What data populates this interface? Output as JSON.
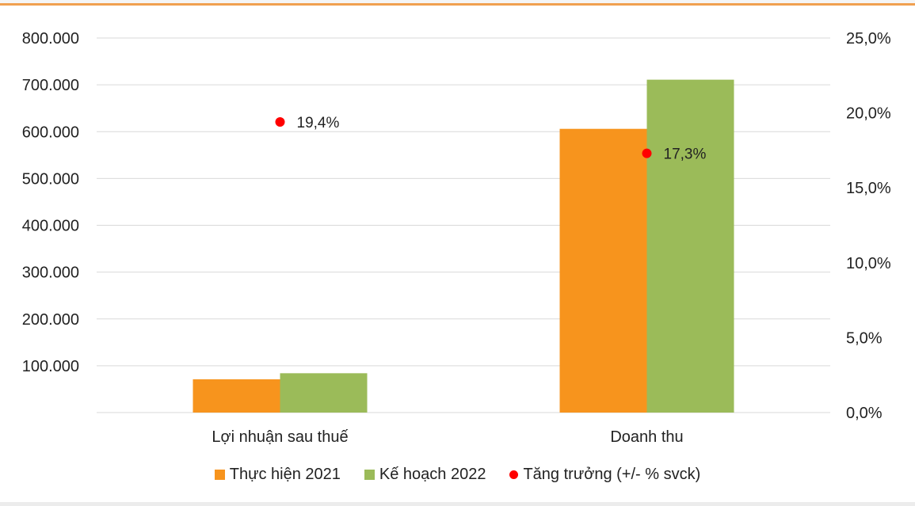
{
  "chart_data": {
    "type": "bar",
    "categories": [
      "Lợi nhuận sau thuế",
      "Doanh thu"
    ],
    "series": [
      {
        "name": "Thực hiện 2021",
        "kind": "bar",
        "axis": "left",
        "values": [
          71000,
          606000
        ],
        "color": "#f7941d"
      },
      {
        "name": "Kế hoạch 2022",
        "kind": "bar",
        "axis": "left",
        "values": [
          84000,
          711000
        ],
        "color": "#9bbb59"
      },
      {
        "name": "Tăng trưởng (+/- % svck)",
        "kind": "scatter",
        "axis": "right",
        "values": [
          19.4,
          17.3
        ],
        "labels": [
          "19,4%",
          "17,3%"
        ],
        "color": "#ff0000"
      }
    ],
    "y_left": {
      "range": [
        0,
        800000
      ],
      "ticks": [
        "",
        "100.000",
        "200.000",
        "300.000",
        "400.000",
        "500.000",
        "600.000",
        "700.000",
        "800.000"
      ]
    },
    "y_right": {
      "range": [
        0,
        25
      ],
      "ticks": [
        "0,0%",
        "5,0%",
        "10,0%",
        "15,0%",
        "20,0%",
        "25,0%"
      ]
    },
    "grid": true,
    "legend_position": "bottom"
  }
}
